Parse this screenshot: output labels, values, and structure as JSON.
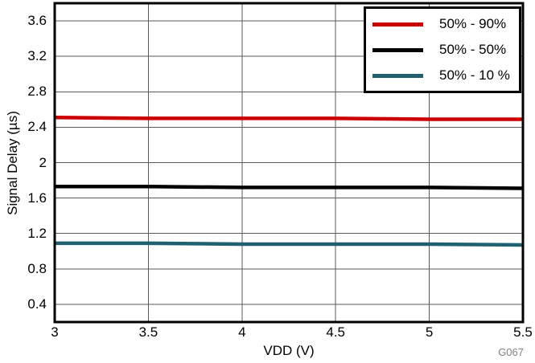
{
  "chart_data": {
    "type": "line",
    "title": "",
    "xlabel": "VDD (V)",
    "ylabel": "Signal Delay (µs)",
    "watermark": "G067",
    "xlim": [
      3,
      5.5
    ],
    "ylim": [
      0.2,
      3.8
    ],
    "xticks": [
      3,
      3.5,
      4,
      4.5,
      5,
      5.5
    ],
    "xtick_labels": [
      "3",
      "3.5",
      "4",
      "4.5",
      "5",
      "5.5"
    ],
    "yticks": [
      0.4,
      0.8,
      1.2,
      1.6,
      2,
      2.4,
      2.8,
      3.2,
      3.6
    ],
    "ytick_labels": [
      "0.4",
      "0.8",
      "1.2",
      "1.6",
      "2",
      "2.4",
      "2.8",
      "3.2",
      "3.6"
    ],
    "grid": true,
    "legend_position": "top-right",
    "x": [
      3,
      3.5,
      4,
      4.5,
      5,
      5.5
    ],
    "series": [
      {
        "name": "50% - 90%",
        "color": "#cc0000",
        "values": [
          2.51,
          2.5,
          2.5,
          2.5,
          2.49,
          2.49
        ]
      },
      {
        "name": "50% - 50%",
        "color": "#000000",
        "values": [
          1.73,
          1.73,
          1.72,
          1.72,
          1.72,
          1.71
        ]
      },
      {
        "name": "50% - 10 %",
        "color": "#20616f",
        "values": [
          1.09,
          1.09,
          1.08,
          1.08,
          1.08,
          1.07
        ]
      }
    ],
    "colors": {
      "grid": "#595959",
      "border": "#000000",
      "watermark": "#808080",
      "background": "#ffffff",
      "text": "#000000"
    }
  }
}
